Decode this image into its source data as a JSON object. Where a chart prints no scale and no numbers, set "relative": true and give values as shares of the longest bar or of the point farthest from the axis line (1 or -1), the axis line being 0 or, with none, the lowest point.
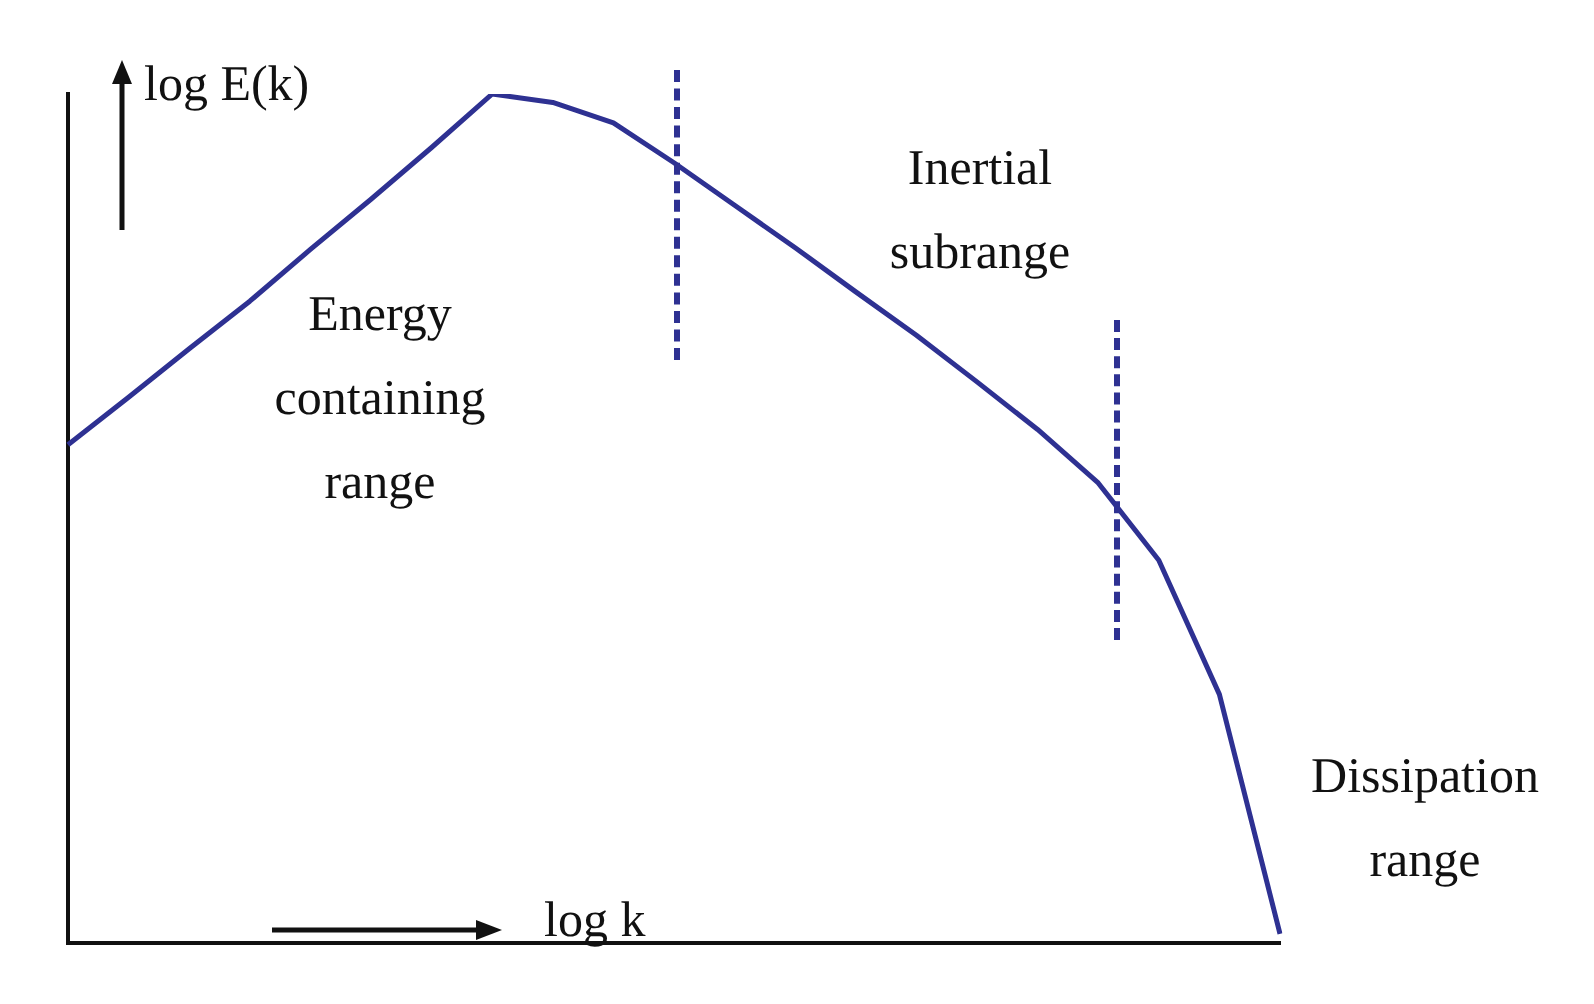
{
  "chart_data": {
    "type": "line",
    "relative": true,
    "grid": false,
    "legend": false,
    "marker": "none",
    "line_style": "solid",
    "xlabel": "log k",
    "ylabel": "log E(k)",
    "categories": [
      null,
      null,
      null,
      null,
      null,
      null,
      null,
      null,
      null,
      null,
      null,
      null,
      null,
      null,
      null,
      null,
      null,
      null,
      null,
      null,
      null
    ],
    "series": [
      {
        "color": "#2e3192",
        "values": [
          0.587,
          0.643,
          0.7,
          0.756,
          0.817,
          0.876,
          0.937,
          1,
          0.99,
          0.966,
          0.919,
          0.869,
          0.819,
          0.767,
          0.716,
          0.661,
          0.605,
          0.542,
          0.451,
          0.293,
          0.011
        ]
      }
    ],
    "annotations": [
      "Energy containing range",
      "Inertial subrange",
      "Dissipation range"
    ]
  }
}
